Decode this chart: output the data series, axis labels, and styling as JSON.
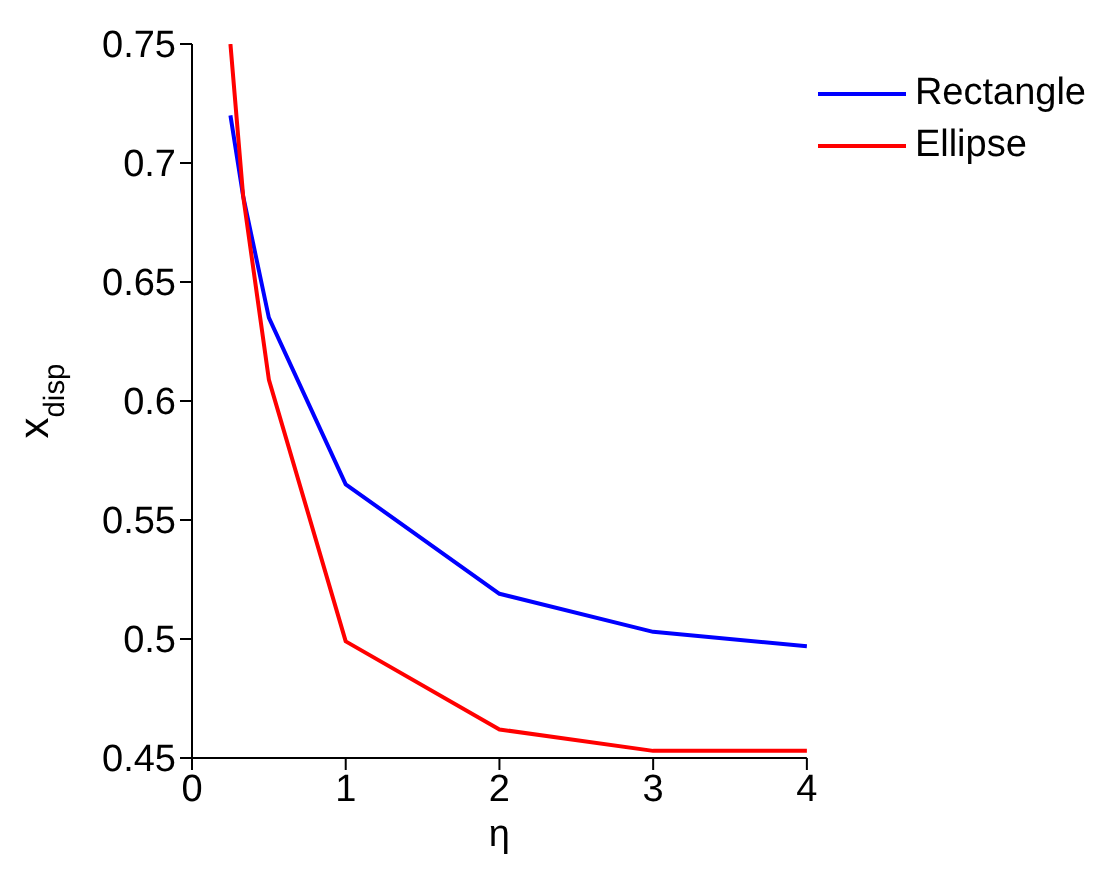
{
  "chart_data": {
    "type": "line",
    "xlabel": "η",
    "ylabel": "x$_{disp}$",
    "xlim": [
      0,
      4
    ],
    "xticks": [
      0,
      1,
      2,
      3,
      4
    ],
    "ylim": [
      0.45,
      0.75
    ],
    "yticks": [
      0.45,
      0.5,
      0.55,
      0.6,
      0.65,
      0.7,
      0.75
    ],
    "x": [
      0.25,
      0.333,
      0.5,
      1,
      2,
      3,
      4
    ],
    "series": [
      {
        "name": "Rectangle",
        "color": "#0000ff",
        "values": [
          0.72,
          0.686,
          0.635,
          0.565,
          0.519,
          0.503,
          0.497
        ]
      },
      {
        "name": "Ellipse",
        "color": "#ff0000",
        "values": [
          0.75,
          0.686,
          0.609,
          0.499,
          0.462,
          0.453,
          0.453
        ]
      }
    ],
    "legend": "top right",
    "grid": false,
    "marker": "none",
    "line_style": "solid"
  }
}
